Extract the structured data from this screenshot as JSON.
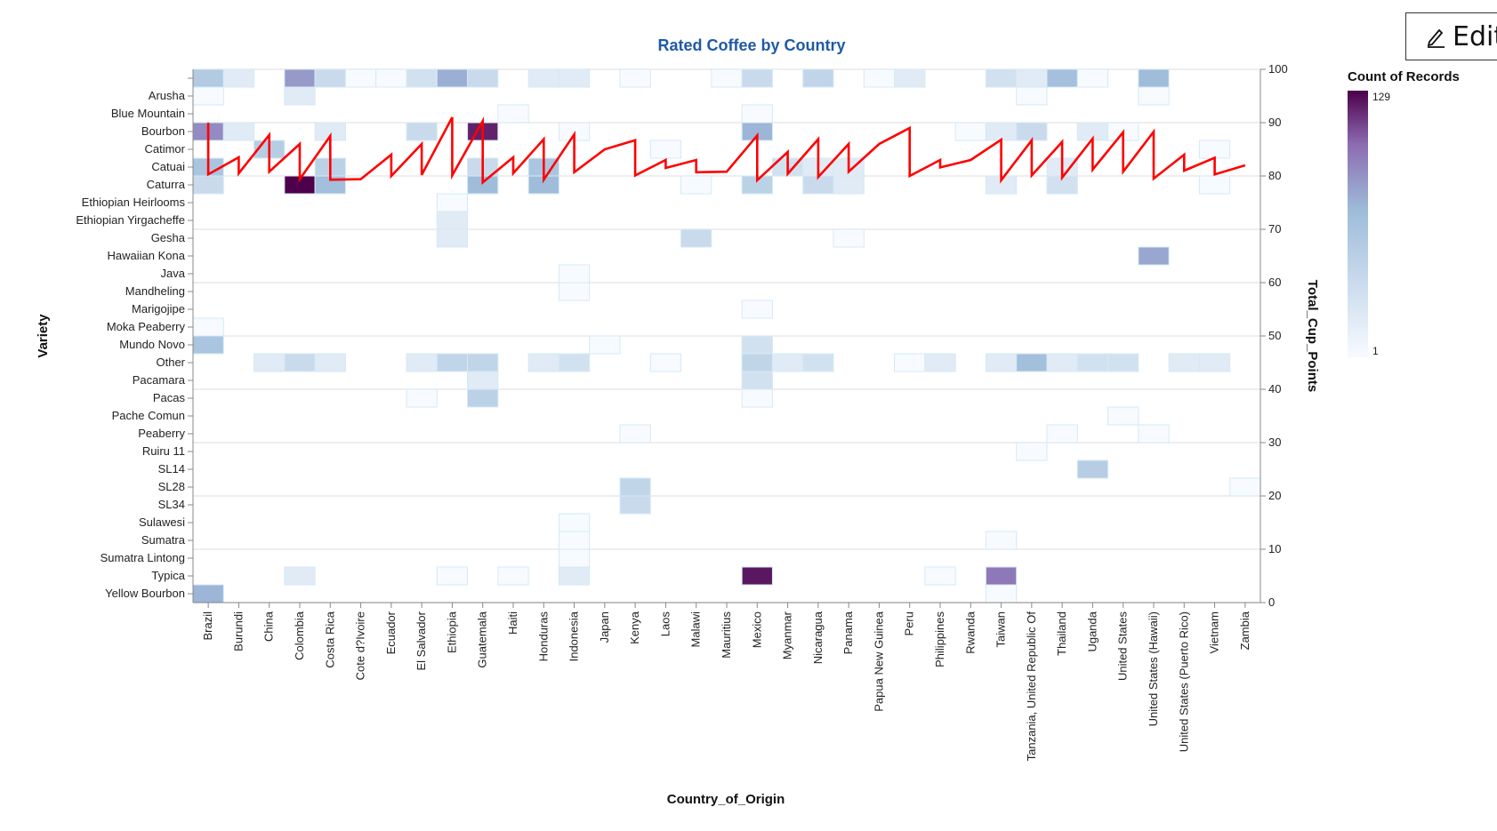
{
  "edit_button": {
    "label": "Edit",
    "icon": "pencil-icon"
  },
  "chart_data": {
    "type": "heatmap",
    "title": "Rated Coffee by Country",
    "xlabel": "Country_of_Origin",
    "ylabel": "Variety",
    "y2label": "Total_Cup_Points",
    "y2lim": [
      0,
      100
    ],
    "y2ticks": [
      "0",
      "10",
      "20",
      "30",
      "40",
      "50",
      "60",
      "70",
      "80",
      "90",
      "100"
    ],
    "grid": true,
    "legend": {
      "title": "Count of Records",
      "min": 1,
      "max": 129,
      "min_label": "1",
      "max_label": "129",
      "placement": "right"
    },
    "colors": {
      "low": "#f7fbff",
      "mid": "#9ebcda",
      "high": "#4d004b",
      "line": "#ff0000",
      "title": "#1f5aa6"
    },
    "countries": [
      "Brazil",
      "Burundi",
      "China",
      "Colombia",
      "Costa Rica",
      "Cote d?Ivoire",
      "Ecuador",
      "El Salvador",
      "Ethiopia",
      "Guatemala",
      "Haiti",
      "Honduras",
      "Indonesia",
      "Japan",
      "Kenya",
      "Laos",
      "Malawi",
      "Mauritius",
      "Mexico",
      "Myanmar",
      "Nicaragua",
      "Panama",
      "Papua New Guinea",
      "Peru",
      "Philippines",
      "Rwanda",
      "Taiwan",
      "Tanzania, United Republic Of",
      "Thailand",
      "Uganda",
      "United States",
      "United States (Hawaii)",
      "United States (Puerto Rico)",
      "Vietnam",
      "Zambia"
    ],
    "varieties": [
      "",
      "Arusha",
      "Blue Mountain",
      "Bourbon",
      "Catimor",
      "Catuai",
      "Caturra",
      "Ethiopian Heirlooms",
      "Ethiopian Yirgacheffe",
      "Gesha",
      "Hawaiian Kona",
      "Java",
      "Mandheling",
      "Marigojipe",
      "Moka Peaberry",
      "Mundo Novo",
      "Other",
      "Pacamara",
      "Pacas",
      "Pache Comun",
      "Peaberry",
      "Ruiru 11",
      "SL14",
      "SL28",
      "SL34",
      "Sulawesi",
      "Sumatra",
      "Sumatra Lintong",
      "Typica",
      "Yellow Bourbon"
    ],
    "cells": [
      [
        "Brazil",
        "",
        8
      ],
      [
        "Brazil",
        "Arusha",
        1
      ],
      [
        "Brazil",
        "Bourbon",
        30
      ],
      [
        "Brazil",
        "Catuai",
        10
      ],
      [
        "Brazil",
        "Caturra",
        4
      ],
      [
        "Brazil",
        "Moka Peaberry",
        1
      ],
      [
        "Brazil",
        "Mundo Novo",
        10
      ],
      [
        "Brazil",
        "Yellow Bourbon",
        16
      ],
      [
        "Burundi",
        "",
        2
      ],
      [
        "Burundi",
        "Bourbon",
        2
      ],
      [
        "China",
        "Catimor",
        7
      ],
      [
        "China",
        "Other",
        2
      ],
      [
        "Colombia",
        "",
        24
      ],
      [
        "Colombia",
        "Arusha",
        2
      ],
      [
        "Colombia",
        "Caturra",
        129
      ],
      [
        "Colombia",
        "Other",
        4
      ],
      [
        "Colombia",
        "Typica",
        2
      ],
      [
        "Costa Rica",
        "",
        4
      ],
      [
        "Costa Rica",
        "Bourbon",
        2
      ],
      [
        "Costa Rica",
        "Catuai",
        6
      ],
      [
        "Costa Rica",
        "Caturra",
        13
      ],
      [
        "Costa Rica",
        "Other",
        2
      ],
      [
        "Cote d?Ivoire",
        "",
        1
      ],
      [
        "Ecuador",
        "",
        1
      ],
      [
        "El Salvador",
        "",
        3
      ],
      [
        "El Salvador",
        "Bourbon",
        4
      ],
      [
        "El Salvador",
        "Other",
        2
      ],
      [
        "El Salvador",
        "Pacas",
        1
      ],
      [
        "Ethiopia",
        "",
        18
      ],
      [
        "Ethiopia",
        "Ethiopian Heirlooms",
        1
      ],
      [
        "Ethiopia",
        "Ethiopian Yirgacheffe",
        2
      ],
      [
        "Ethiopia",
        "Gesha",
        2
      ],
      [
        "Ethiopia",
        "Other",
        5
      ],
      [
        "Ethiopia",
        "Typica",
        1
      ],
      [
        "Guatemala",
        "",
        4
      ],
      [
        "Guatemala",
        "Bourbon",
        95
      ],
      [
        "Guatemala",
        "Catuai",
        4
      ],
      [
        "Guatemala",
        "Caturra",
        14
      ],
      [
        "Guatemala",
        "Other",
        5
      ],
      [
        "Guatemala",
        "Pacamara",
        2
      ],
      [
        "Guatemala",
        "Pacas",
        6
      ],
      [
        "Haiti",
        "Blue Mountain",
        1
      ],
      [
        "Haiti",
        "Typica",
        1
      ],
      [
        "Honduras",
        "",
        2
      ],
      [
        "Honduras",
        "Catuai",
        10
      ],
      [
        "Honduras",
        "Caturra",
        14
      ],
      [
        "Honduras",
        "Other",
        2
      ],
      [
        "Indonesia",
        "",
        2
      ],
      [
        "Indonesia",
        "Bourbon",
        1
      ],
      [
        "Indonesia",
        "Java",
        1
      ],
      [
        "Indonesia",
        "Mandheling",
        1
      ],
      [
        "Indonesia",
        "Other",
        3
      ],
      [
        "Indonesia",
        "Sulawesi",
        1
      ],
      [
        "Indonesia",
        "Sumatra",
        1
      ],
      [
        "Indonesia",
        "Sumatra Lintong",
        1
      ],
      [
        "Indonesia",
        "Typica",
        2
      ],
      [
        "Japan",
        "Mundo Novo",
        1
      ],
      [
        "Kenya",
        "",
        1
      ],
      [
        "Kenya",
        "Peaberry",
        1
      ],
      [
        "Kenya",
        "SL28",
        5
      ],
      [
        "Kenya",
        "SL34",
        4
      ],
      [
        "Laos",
        "Catimor",
        1
      ],
      [
        "Laos",
        "Other",
        1
      ],
      [
        "Malawi",
        "Caturra",
        1
      ],
      [
        "Malawi",
        "Gesha",
        4
      ],
      [
        "Mauritius",
        "",
        1
      ],
      [
        "Mexico",
        "",
        4
      ],
      [
        "Mexico",
        "Blue Mountain",
        1
      ],
      [
        "Mexico",
        "Bourbon",
        16
      ],
      [
        "Mexico",
        "Caturra",
        6
      ],
      [
        "Mexico",
        "Marigojipe",
        1
      ],
      [
        "Mexico",
        "Mundo Novo",
        3
      ],
      [
        "Mexico",
        "Other",
        5
      ],
      [
        "Mexico",
        "Pacamara",
        3
      ],
      [
        "Mexico",
        "Pacas",
        1
      ],
      [
        "Mexico",
        "Typica",
        105
      ],
      [
        "Myanmar",
        "Catuai",
        3
      ],
      [
        "Myanmar",
        "Other",
        2
      ],
      [
        "Nicaragua",
        "",
        5
      ],
      [
        "Nicaragua",
        "Catuai",
        2
      ],
      [
        "Nicaragua",
        "Caturra",
        4
      ],
      [
        "Nicaragua",
        "Other",
        3
      ],
      [
        "Panama",
        "Catuai",
        2
      ],
      [
        "Panama",
        "Caturra",
        2
      ],
      [
        "Panama",
        "Gesha",
        1
      ],
      [
        "Papua New Guinea",
        "",
        1
      ],
      [
        "Peru",
        "",
        2
      ],
      [
        "Peru",
        "Other",
        1
      ],
      [
        "Philippines",
        "Other",
        2
      ],
      [
        "Philippines",
        "Typica",
        1
      ],
      [
        "Rwanda",
        "Bourbon",
        1
      ],
      [
        "Taiwan",
        "",
        3
      ],
      [
        "Taiwan",
        "Bourbon",
        2
      ],
      [
        "Taiwan",
        "Caturra",
        2
      ],
      [
        "Taiwan",
        "Other",
        2
      ],
      [
        "Taiwan",
        "Sumatra",
        1
      ],
      [
        "Taiwan",
        "Typica",
        40
      ],
      [
        "Taiwan",
        "Yellow Bourbon",
        1
      ],
      [
        "Tanzania, United Republic Of",
        "",
        2
      ],
      [
        "Tanzania, United Republic Of",
        "Arusha",
        1
      ],
      [
        "Tanzania, United Republic Of",
        "Bourbon",
        4
      ],
      [
        "Tanzania, United Republic Of",
        "Other",
        13
      ],
      [
        "Tanzania, United Republic Of",
        "Ruiru 11",
        1
      ],
      [
        "Thailand",
        "",
        12
      ],
      [
        "Thailand",
        "Catuai",
        2
      ],
      [
        "Thailand",
        "Caturra",
        3
      ],
      [
        "Thailand",
        "Other",
        2
      ],
      [
        "Thailand",
        "Peaberry",
        1
      ],
      [
        "Uganda",
        "",
        1
      ],
      [
        "Uganda",
        "Bourbon",
        2
      ],
      [
        "Uganda",
        "Other",
        3
      ],
      [
        "Uganda",
        "SL14",
        7
      ],
      [
        "United States",
        "Bourbon",
        1
      ],
      [
        "United States",
        "Other",
        3
      ],
      [
        "United States",
        "Pache Comun",
        1
      ],
      [
        "United States (Hawaii)",
        "",
        14
      ],
      [
        "United States (Hawaii)",
        "Arusha",
        1
      ],
      [
        "United States (Hawaii)",
        "Hawaiian Kona",
        20
      ],
      [
        "United States (Hawaii)",
        "Peaberry",
        1
      ],
      [
        "United States (Puerto Rico)",
        "Other",
        2
      ],
      [
        "Vietnam",
        "Catimor",
        1
      ],
      [
        "Vietnam",
        "Caturra",
        1
      ],
      [
        "Vietnam",
        "Other",
        2
      ],
      [
        "Zambia",
        "SL28",
        1
      ]
    ],
    "line_series": {
      "name": "",
      "segments": [
        [
          90.0,
          80.3
        ],
        [
          83.5,
          80.5
        ],
        [
          87.7,
          80.8
        ],
        [
          86.0,
          79.4
        ],
        [
          87.5,
          79.3
        ],
        [
          79.4
        ],
        [
          84.0,
          80.0
        ],
        [
          86.0,
          80.2
        ],
        [
          91.0,
          80.1
        ],
        [
          90.3,
          78.8
        ],
        [
          83.5,
          80.5
        ],
        [
          86.9,
          79.3
        ],
        [
          87.8,
          80.7
        ],
        [
          85.0
        ],
        [
          86.7,
          80.1
        ],
        [
          83.0,
          81.5
        ],
        [
          83.0,
          80.7
        ],
        [
          80.8
        ],
        [
          87.6,
          79.2
        ],
        [
          84.5,
          80.4
        ],
        [
          86.9,
          79.8
        ],
        [
          86.0,
          80.8
        ],
        [
          86.0
        ],
        [
          89.0,
          80.0
        ],
        [
          83.0,
          81.6
        ],
        [
          83.0
        ],
        [
          86.8,
          79.2
        ],
        [
          86.7,
          80.1
        ],
        [
          86.4,
          79.7
        ],
        [
          87.0,
          81.2
        ],
        [
          88.2,
          80.8
        ],
        [
          88.3,
          79.5
        ],
        [
          84.0,
          81.0
        ],
        [
          83.4,
          80.3
        ],
        [
          82.0
        ]
      ]
    }
  }
}
